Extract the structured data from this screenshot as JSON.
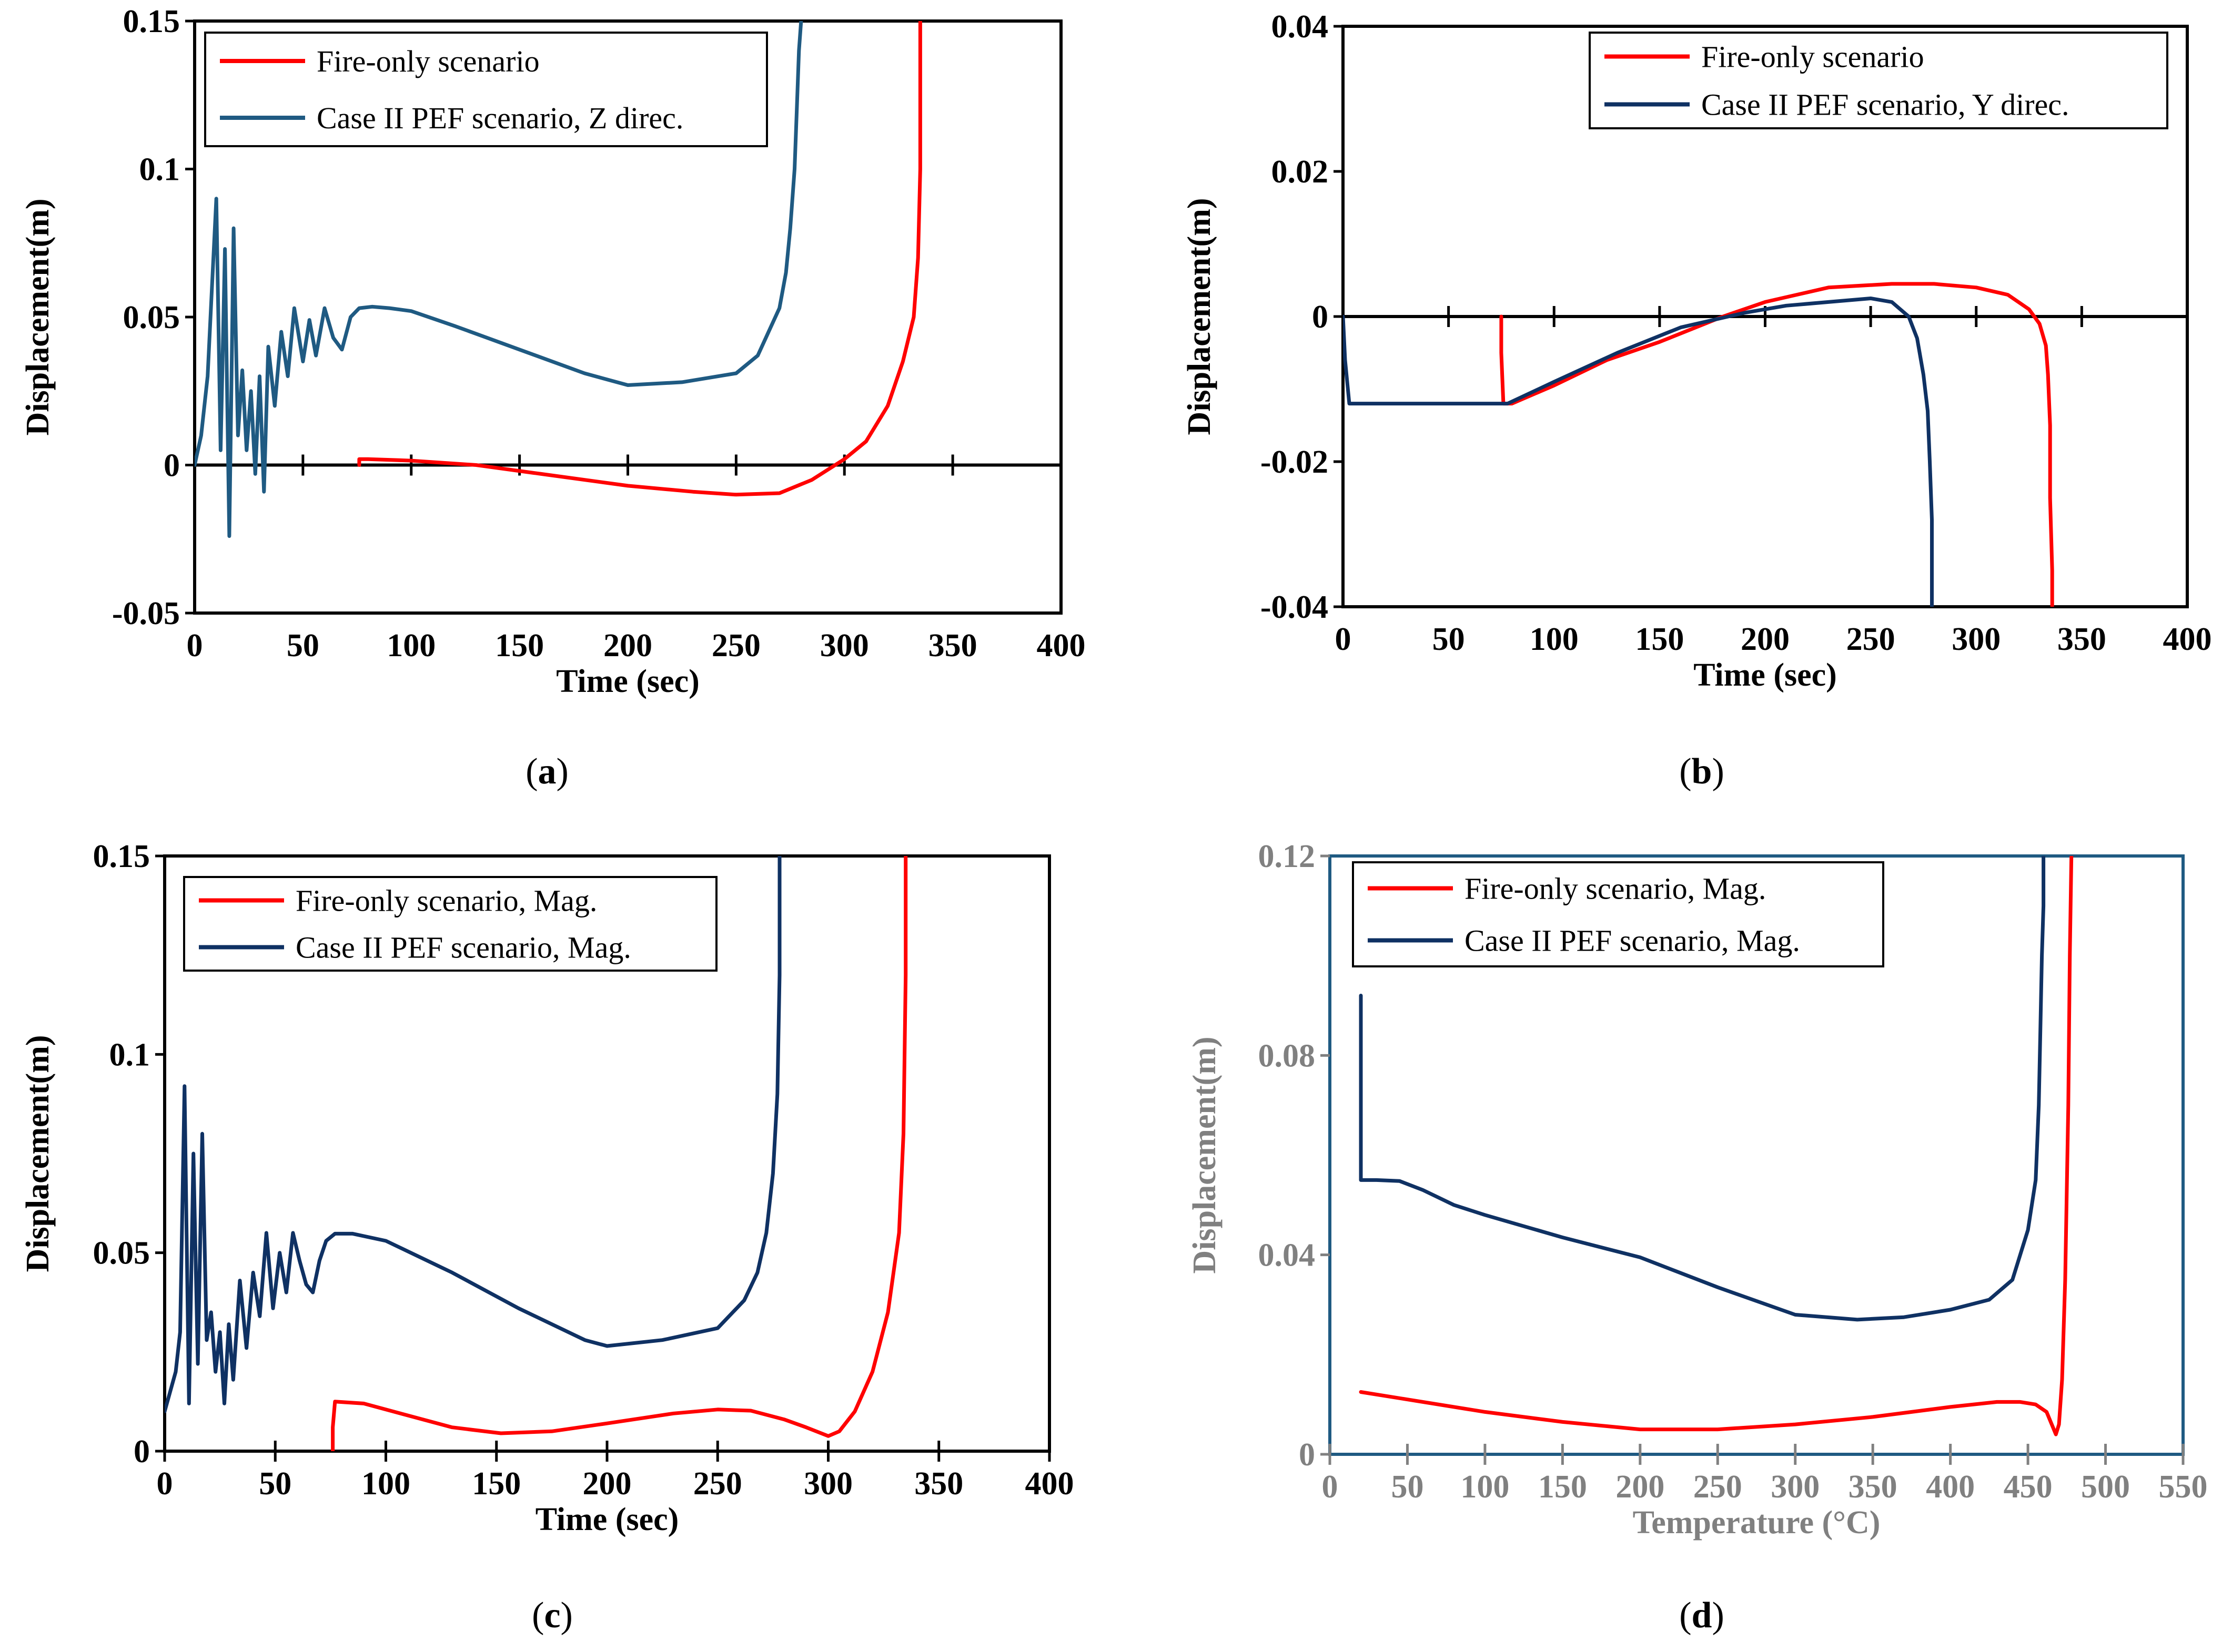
{
  "colors": {
    "fire": "#ff0000",
    "pef_a": "#1f5a82",
    "pef_other": "#0f3163",
    "axis": "#000000",
    "gray_text": "#808080",
    "gray_frame": "#1f5a82"
  },
  "chart_data": [
    {
      "id": "a",
      "type": "line",
      "caption": "a",
      "title": "",
      "xlabel": "Time (sec)",
      "ylabel": "Displacement(m)",
      "xlim": [
        0,
        400
      ],
      "ylim": [
        -0.05,
        0.15
      ],
      "xticks": [
        "0",
        "50",
        "100",
        "150",
        "200",
        "250",
        "300",
        "350",
        "400"
      ],
      "yticks": [
        "-0.05",
        "0",
        "0.05",
        "0.1",
        "0.15"
      ],
      "series": [
        {
          "name": "Fire-only scenario",
          "color": "#ff0000",
          "x": [
            76,
            76,
            80,
            100,
            130,
            160,
            200,
            230,
            250,
            270,
            285,
            300,
            310,
            320,
            327,
            332,
            334,
            335,
            335,
            335
          ],
          "y": [
            0,
            0.002,
            0.002,
            0.0015,
            0,
            -0.003,
            -0.007,
            -0.009,
            -0.01,
            -0.0095,
            -0.005,
            0.002,
            0.008,
            0.02,
            0.035,
            0.05,
            0.07,
            0.1,
            0.13,
            0.15
          ]
        },
        {
          "name": "Case II PEF scenario, Z direc.",
          "color": "#1f5a82",
          "x": [
            0,
            3,
            6,
            8,
            10,
            12,
            14,
            16,
            18,
            20,
            22,
            24,
            26,
            28,
            30,
            32,
            34,
            37,
            40,
            43,
            46,
            50,
            53,
            56,
            60,
            64,
            68,
            72,
            76,
            82,
            90,
            100,
            120,
            150,
            180,
            200,
            225,
            250,
            260,
            265,
            270,
            273,
            275,
            277,
            278,
            279,
            280
          ],
          "y": [
            0,
            0.01,
            0.03,
            0.06,
            0.09,
            0.005,
            0.073,
            -0.024,
            0.08,
            0.01,
            0.032,
            0.005,
            0.025,
            -0.003,
            0.03,
            -0.009,
            0.04,
            0.02,
            0.045,
            0.03,
            0.053,
            0.035,
            0.049,
            0.037,
            0.053,
            0.043,
            0.039,
            0.05,
            0.053,
            0.0535,
            0.053,
            0.052,
            0.047,
            0.039,
            0.031,
            0.027,
            0.028,
            0.031,
            0.037,
            0.045,
            0.053,
            0.065,
            0.08,
            0.1,
            0.12,
            0.14,
            0.15
          ]
        }
      ],
      "legend": "top-left"
    },
    {
      "id": "b",
      "type": "line",
      "caption": "b",
      "title": "",
      "xlabel": "Time (sec)",
      "ylabel": "Displacement(m)",
      "xlim": [
        0,
        400
      ],
      "ylim": [
        -0.04,
        0.04
      ],
      "xticks": [
        "0",
        "50",
        "100",
        "150",
        "200",
        "250",
        "300",
        "350",
        "400"
      ],
      "yticks": [
        "-0.04",
        "-0.02",
        "0",
        "0.02",
        "0.04"
      ],
      "series": [
        {
          "name": "Fire-only scenario",
          "color": "#ff0000",
          "x": [
            75,
            75,
            76,
            80,
            100,
            125,
            150,
            180,
            200,
            230,
            260,
            280,
            300,
            315,
            325,
            330,
            333,
            334,
            335,
            335,
            336,
            336
          ],
          "y": [
            0,
            -0.005,
            -0.012,
            -0.012,
            -0.0095,
            -0.006,
            -0.0035,
            0,
            0.002,
            0.004,
            0.0045,
            0.0045,
            0.004,
            0.003,
            0.001,
            -0.001,
            -0.004,
            -0.008,
            -0.015,
            -0.025,
            -0.035,
            -0.04
          ]
        },
        {
          "name": "Case II PEF scenario, Y direc.",
          "color": "#0f3163",
          "x": [
            0,
            1,
            3,
            10,
            40,
            78,
            100,
            130,
            160,
            190,
            210,
            230,
            250,
            260,
            268,
            272,
            275,
            277,
            278,
            279,
            279,
            279
          ],
          "y": [
            0,
            -0.006,
            -0.012,
            -0.012,
            -0.012,
            -0.012,
            -0.009,
            -0.005,
            -0.0015,
            0.0005,
            0.0015,
            0.002,
            0.0025,
            0.002,
            0,
            -0.003,
            -0.008,
            -0.013,
            -0.02,
            -0.028,
            -0.035,
            -0.04
          ]
        }
      ],
      "legend": "top-right"
    },
    {
      "id": "c",
      "type": "line",
      "caption": "c",
      "title": "",
      "xlabel": "Time (sec)",
      "ylabel": "Displacement(m)",
      "xlim": [
        0,
        400
      ],
      "ylim": [
        0,
        0.15
      ],
      "xticks": [
        "0",
        "50",
        "100",
        "150",
        "200",
        "250",
        "300",
        "350",
        "400"
      ],
      "yticks": [
        "0",
        "0.05",
        "0.1",
        "0.15"
      ],
      "series": [
        {
          "name": "Fire-only scenario, Mag.",
          "color": "#ff0000",
          "x": [
            76,
            76,
            77,
            90,
            110,
            130,
            152,
            175,
            200,
            230,
            250,
            265,
            280,
            290,
            300,
            305,
            312,
            320,
            327,
            332,
            334,
            335,
            335
          ],
          "y": [
            0,
            0.006,
            0.0125,
            0.012,
            0.009,
            0.006,
            0.0045,
            0.005,
            0.007,
            0.0095,
            0.0105,
            0.0102,
            0.008,
            0.006,
            0.0038,
            0.005,
            0.01,
            0.02,
            0.035,
            0.055,
            0.08,
            0.12,
            0.15
          ]
        },
        {
          "name": "Case II PEF scenario, Mag.",
          "color": "#0f3163",
          "x": [
            0,
            2,
            5,
            7,
            9,
            11,
            13,
            15,
            17,
            19,
            21,
            23,
            25,
            27,
            29,
            31,
            34,
            37,
            40,
            43,
            46,
            49,
            52,
            55,
            58,
            61,
            64,
            67,
            70,
            73,
            77,
            85,
            100,
            130,
            160,
            190,
            200,
            225,
            250,
            262,
            268,
            272,
            275,
            277,
            278,
            278
          ],
          "y": [
            0.01,
            0.014,
            0.02,
            0.03,
            0.092,
            0.012,
            0.075,
            0.022,
            0.08,
            0.028,
            0.035,
            0.02,
            0.03,
            0.012,
            0.032,
            0.018,
            0.043,
            0.026,
            0.045,
            0.034,
            0.055,
            0.036,
            0.05,
            0.04,
            0.055,
            0.048,
            0.042,
            0.04,
            0.048,
            0.053,
            0.0548,
            0.0548,
            0.053,
            0.045,
            0.036,
            0.028,
            0.0265,
            0.028,
            0.031,
            0.038,
            0.045,
            0.055,
            0.07,
            0.09,
            0.12,
            0.15
          ]
        }
      ],
      "legend": "top-left"
    },
    {
      "id": "d",
      "type": "line",
      "caption": "d",
      "title": "",
      "xlabel": "Temperature (°C)",
      "ylabel": "Displacement(m)",
      "xlim": [
        0,
        550
      ],
      "ylim": [
        0,
        0.12
      ],
      "xticks": [
        "0",
        "50",
        "100",
        "150",
        "200",
        "250",
        "300",
        "350",
        "400",
        "450",
        "500",
        "550"
      ],
      "yticks": [
        "0",
        "0.04",
        "0.08",
        "0.12"
      ],
      "series": [
        {
          "name": "Fire-only scenario, Mag.",
          "color": "#ff0000",
          "x": [
            20,
            50,
            100,
            150,
            200,
            250,
            300,
            350,
            400,
            430,
            445,
            455,
            462,
            466,
            468,
            470,
            472,
            474,
            476,
            477,
            478
          ],
          "y": [
            0.0125,
            0.011,
            0.0085,
            0.0065,
            0.005,
            0.005,
            0.006,
            0.0075,
            0.0095,
            0.0105,
            0.0105,
            0.01,
            0.0085,
            0.0055,
            0.004,
            0.006,
            0.015,
            0.035,
            0.07,
            0.1,
            0.12
          ]
        },
        {
          "name": "Case II PEF scenario, Mag.",
          "color": "#0f3163",
          "x": [
            20,
            20,
            20,
            30,
            45,
            60,
            80,
            100,
            150,
            200,
            250,
            300,
            340,
            370,
            400,
            425,
            440,
            450,
            455,
            457,
            458,
            459,
            460,
            460
          ],
          "y": [
            0.092,
            0.07,
            0.055,
            0.055,
            0.0548,
            0.053,
            0.05,
            0.048,
            0.0435,
            0.0395,
            0.0335,
            0.028,
            0.027,
            0.0275,
            0.029,
            0.031,
            0.035,
            0.045,
            0.055,
            0.07,
            0.085,
            0.1,
            0.11,
            0.12
          ]
        }
      ],
      "legend": "top-left"
    }
  ]
}
